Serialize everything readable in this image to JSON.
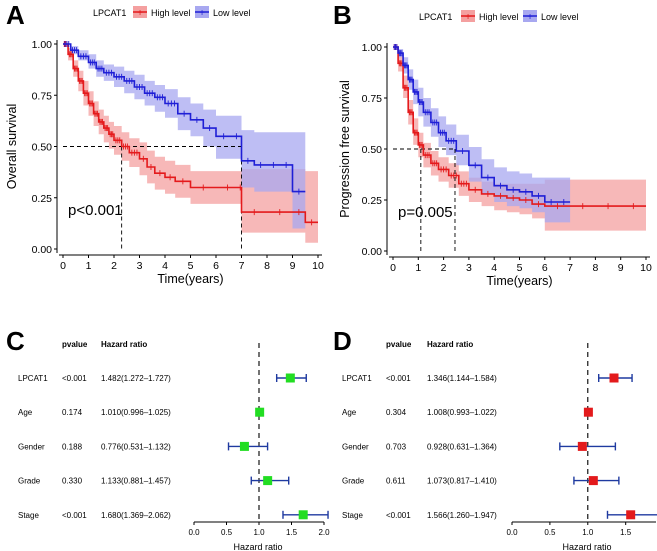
{
  "colors": {
    "high": "#e41a1c",
    "high_fill": "#f4a0a0",
    "low": "#1f1fd6",
    "low_fill": "#a8a8f0",
    "green": "#22dd22",
    "red": "#e31a1c",
    "ci": "#1f3aa0",
    "black": "#000000"
  },
  "chart_data": [
    {
      "panel": "A",
      "type": "line",
      "subtype": "kaplan-meier",
      "legend_title": "LPCAT1",
      "legend": [
        "High level",
        "Low level"
      ],
      "xlabel": "Time(years)",
      "ylabel": "Overall survival",
      "xlim": [
        0,
        10
      ],
      "ylim": [
        0,
        1
      ],
      "xticks": [
        "0",
        "1",
        "2",
        "3",
        "4",
        "5",
        "6",
        "7",
        "8",
        "9",
        "10"
      ],
      "yticks": [
        "0.00",
        "0.25",
        "0.50",
        "0.75",
        "1.00"
      ],
      "pvalue_label": "p<0.001",
      "median_lines": [
        2.3,
        7.0
      ],
      "series": [
        {
          "name": "High level",
          "x": [
            0,
            0.2,
            0.4,
            0.6,
            0.8,
            1.0,
            1.2,
            1.4,
            1.6,
            1.8,
            2.0,
            2.3,
            2.6,
            3.0,
            3.3,
            3.6,
            4.0,
            4.4,
            5.0,
            6.0,
            6.9,
            7.0,
            8.0,
            9.0,
            9.5,
            10.0
          ],
          "y": [
            1.0,
            0.95,
            0.88,
            0.82,
            0.76,
            0.71,
            0.66,
            0.62,
            0.59,
            0.56,
            0.53,
            0.5,
            0.47,
            0.44,
            0.4,
            0.37,
            0.35,
            0.33,
            0.3,
            0.3,
            0.3,
            0.18,
            0.18,
            0.18,
            0.13,
            0.13
          ],
          "lower": [
            1.0,
            0.92,
            0.84,
            0.77,
            0.7,
            0.65,
            0.6,
            0.56,
            0.52,
            0.49,
            0.46,
            0.43,
            0.4,
            0.36,
            0.32,
            0.29,
            0.27,
            0.25,
            0.22,
            0.22,
            0.22,
            0.08,
            0.08,
            0.08,
            0.03,
            0.03
          ],
          "upper": [
            1.0,
            0.98,
            0.92,
            0.87,
            0.82,
            0.77,
            0.72,
            0.68,
            0.65,
            0.62,
            0.6,
            0.57,
            0.54,
            0.52,
            0.48,
            0.45,
            0.43,
            0.41,
            0.38,
            0.38,
            0.38,
            0.39,
            0.39,
            0.39,
            0.38,
            0.38
          ]
        },
        {
          "name": "Low level",
          "x": [
            0,
            0.3,
            0.6,
            1.0,
            1.3,
            1.6,
            2.0,
            2.4,
            2.8,
            3.2,
            3.6,
            4.0,
            4.5,
            5.0,
            5.5,
            6.0,
            6.6,
            7.0,
            7.5,
            8.0,
            8.5,
            9.0,
            9.5
          ],
          "y": [
            1.0,
            0.97,
            0.94,
            0.91,
            0.88,
            0.86,
            0.84,
            0.82,
            0.79,
            0.76,
            0.74,
            0.71,
            0.66,
            0.63,
            0.59,
            0.55,
            0.55,
            0.43,
            0.41,
            0.41,
            0.41,
            0.28,
            0.28
          ],
          "lower": [
            1.0,
            0.95,
            0.92,
            0.88,
            0.84,
            0.82,
            0.79,
            0.76,
            0.73,
            0.7,
            0.67,
            0.64,
            0.58,
            0.55,
            0.5,
            0.44,
            0.44,
            0.3,
            0.28,
            0.28,
            0.28,
            0.1,
            0.1
          ],
          "upper": [
            1.0,
            0.99,
            0.97,
            0.95,
            0.92,
            0.9,
            0.89,
            0.87,
            0.85,
            0.82,
            0.8,
            0.78,
            0.74,
            0.71,
            0.68,
            0.65,
            0.65,
            0.58,
            0.57,
            0.57,
            0.57,
            0.57,
            0.57
          ]
        }
      ]
    },
    {
      "panel": "B",
      "type": "line",
      "subtype": "kaplan-meier",
      "legend_title": "LPCAT1",
      "legend": [
        "High level",
        "Low level"
      ],
      "xlabel": "Time(years)",
      "ylabel": "Progression free survival",
      "xlim": [
        0,
        10
      ],
      "ylim": [
        0,
        1
      ],
      "xticks": [
        "0",
        "1",
        "2",
        "3",
        "4",
        "5",
        "6",
        "7",
        "8",
        "9",
        "10"
      ],
      "yticks": [
        "0.00",
        "0.25",
        "0.50",
        "0.75",
        "1.00"
      ],
      "pvalue_label": "p=0.005",
      "median_lines": [
        1.1,
        2.45
      ],
      "series": [
        {
          "name": "High level",
          "x": [
            0,
            0.2,
            0.4,
            0.6,
            0.8,
            1.0,
            1.2,
            1.5,
            1.8,
            2.2,
            2.6,
            3.0,
            3.5,
            4.0,
            4.5,
            5.0,
            5.5,
            6.0,
            7.0,
            8.0,
            9.0,
            10.0
          ],
          "y": [
            1.0,
            0.92,
            0.8,
            0.68,
            0.58,
            0.52,
            0.47,
            0.43,
            0.4,
            0.37,
            0.33,
            0.3,
            0.28,
            0.27,
            0.26,
            0.25,
            0.23,
            0.22,
            0.22,
            0.22,
            0.22,
            0.22
          ],
          "lower": [
            1.0,
            0.88,
            0.75,
            0.62,
            0.52,
            0.46,
            0.41,
            0.37,
            0.34,
            0.31,
            0.27,
            0.24,
            0.22,
            0.2,
            0.19,
            0.18,
            0.16,
            0.1,
            0.1,
            0.1,
            0.1,
            0.1
          ],
          "upper": [
            1.0,
            0.96,
            0.86,
            0.74,
            0.65,
            0.58,
            0.53,
            0.49,
            0.46,
            0.43,
            0.39,
            0.36,
            0.34,
            0.33,
            0.33,
            0.33,
            0.33,
            0.35,
            0.35,
            0.35,
            0.35,
            0.35
          ]
        },
        {
          "name": "Low level",
          "x": [
            0,
            0.2,
            0.4,
            0.6,
            0.8,
            1.0,
            1.2,
            1.5,
            1.8,
            2.1,
            2.5,
            3.0,
            3.5,
            4.0,
            4.5,
            5.0,
            5.5,
            6.0,
            6.5,
            7.0
          ],
          "y": [
            1.0,
            0.97,
            0.91,
            0.84,
            0.78,
            0.73,
            0.68,
            0.63,
            0.58,
            0.54,
            0.49,
            0.42,
            0.36,
            0.32,
            0.3,
            0.29,
            0.27,
            0.24,
            0.24,
            0.24
          ],
          "lower": [
            1.0,
            0.95,
            0.87,
            0.79,
            0.72,
            0.66,
            0.61,
            0.56,
            0.51,
            0.47,
            0.42,
            0.34,
            0.28,
            0.24,
            0.22,
            0.21,
            0.19,
            0.14,
            0.14,
            0.14
          ],
          "upper": [
            1.0,
            0.99,
            0.95,
            0.89,
            0.84,
            0.8,
            0.75,
            0.7,
            0.66,
            0.62,
            0.57,
            0.51,
            0.45,
            0.41,
            0.39,
            0.38,
            0.36,
            0.36,
            0.36,
            0.36
          ]
        }
      ]
    },
    {
      "panel": "C",
      "type": "forest",
      "header_pvalue": "pvalue",
      "header_hr": "Hazard ratio",
      "xlabel": "Hazard ratio",
      "xlim": [
        0,
        2
      ],
      "xticks": [
        "0.0",
        "0.5",
        "1.0",
        "1.5",
        "2.0"
      ],
      "ref_line": 1.0,
      "rows": [
        {
          "name": "LPCAT1",
          "pvalue": "<0.001",
          "hr_text": "1.482(1.272–1.727)",
          "hr": 1.482,
          "lo": 1.272,
          "hi": 1.727
        },
        {
          "name": "Age",
          "pvalue": "0.174",
          "hr_text": "1.010(0.996–1.025)",
          "hr": 1.01,
          "lo": 0.996,
          "hi": 1.025
        },
        {
          "name": "Gender",
          "pvalue": "0.188",
          "hr_text": "0.776(0.531–1.132)",
          "hr": 0.776,
          "lo": 0.531,
          "hi": 1.132
        },
        {
          "name": "Grade",
          "pvalue": "0.330",
          "hr_text": "1.133(0.881–1.457)",
          "hr": 1.133,
          "lo": 0.881,
          "hi": 1.457
        },
        {
          "name": "Stage",
          "pvalue": "<0.001",
          "hr_text": "1.680(1.369–2.062)",
          "hr": 1.68,
          "lo": 1.369,
          "hi": 2.062
        }
      ]
    },
    {
      "panel": "D",
      "type": "forest",
      "header_pvalue": "pvalue",
      "header_hr": "Hazard ratio",
      "xlabel": "Hazard ratio",
      "xlim": [
        0,
        1.9
      ],
      "xticks": [
        "0.0",
        "0.5",
        "1.0",
        "1.5"
      ],
      "ref_line": 1.0,
      "rows": [
        {
          "name": "LPCAT1",
          "pvalue": "<0.001",
          "hr_text": "1.346(1.144–1.584)",
          "hr": 1.346,
          "lo": 1.144,
          "hi": 1.584
        },
        {
          "name": "Age",
          "pvalue": "0.304",
          "hr_text": "1.008(0.993–1.022)",
          "hr": 1.008,
          "lo": 0.993,
          "hi": 1.022
        },
        {
          "name": "Gender",
          "pvalue": "0.703",
          "hr_text": "0.928(0.631–1.364)",
          "hr": 0.928,
          "lo": 0.631,
          "hi": 1.364
        },
        {
          "name": "Grade",
          "pvalue": "0.611",
          "hr_text": "1.073(0.817–1.410)",
          "hr": 1.073,
          "lo": 0.817,
          "hi": 1.41
        },
        {
          "name": "Stage",
          "pvalue": "<0.001",
          "hr_text": "1.566(1.260–1.947)",
          "hr": 1.566,
          "lo": 1.26,
          "hi": 1.947
        }
      ]
    }
  ]
}
